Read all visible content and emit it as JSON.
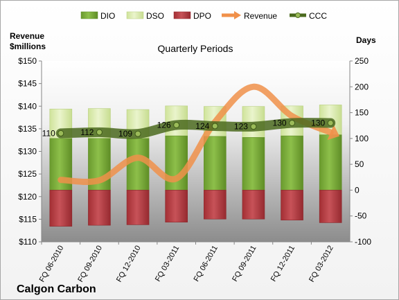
{
  "chart_data": {
    "type": "bar",
    "title": "Quarterly Periods",
    "company": "Calgon Carbon",
    "left_axis_label_line1": "Revenue",
    "left_axis_label_line2": "$millions",
    "right_axis_label": "Days",
    "categories": [
      "FQ 06-2010",
      "FQ 09-2010",
      "FQ 12-2010",
      "FQ 03-2011",
      "FQ 06-2011",
      "FQ 09-2011",
      "FQ 12-2011",
      "FQ 03-2012"
    ],
    "left_axis": {
      "min": 110,
      "max": 150,
      "step": 5,
      "tick_labels": [
        "$110",
        "$115",
        "$120",
        "$125",
        "$130",
        "$135",
        "$140",
        "$145",
        "$150"
      ]
    },
    "right_axis": {
      "min": -100,
      "max": 250,
      "step": 50,
      "tick_labels": [
        "-100",
        "-50",
        "0",
        "50",
        "100",
        "150",
        "200",
        "250"
      ]
    },
    "series": [
      {
        "name": "DIO",
        "axis": "right",
        "kind": "stacked-bar",
        "color": "#77A83A",
        "values": [
          100,
          100,
          100,
          105,
          104,
          102,
          105,
          107
        ]
      },
      {
        "name": "DSO",
        "axis": "right",
        "kind": "stacked-bar",
        "color": "#D6E8A8",
        "values": [
          57,
          58,
          56,
          58,
          58,
          60,
          58,
          58
        ]
      },
      {
        "name": "DPO",
        "axis": "right",
        "kind": "stacked-bar-negative",
        "color": "#B5393F",
        "values": [
          -70,
          -68,
          -67,
          -62,
          -56,
          -56,
          -58,
          -63
        ]
      },
      {
        "name": "Revenue",
        "axis": "left",
        "kind": "line",
        "color": "#F0904A",
        "values": [
          123.7,
          123.6,
          128.6,
          124.0,
          136.5,
          144.3,
          137.8,
          134.2
        ]
      },
      {
        "name": "CCC",
        "axis": "right",
        "kind": "line",
        "color": "#4B6A1E",
        "values": [
          110,
          112,
          109,
          126,
          124,
          123,
          130,
          130
        ]
      }
    ],
    "data_labels": [
      "110",
      "112",
      "109",
      "126",
      "124",
      "123",
      "130",
      "130"
    ],
    "legend_position": "top",
    "grid": false
  }
}
